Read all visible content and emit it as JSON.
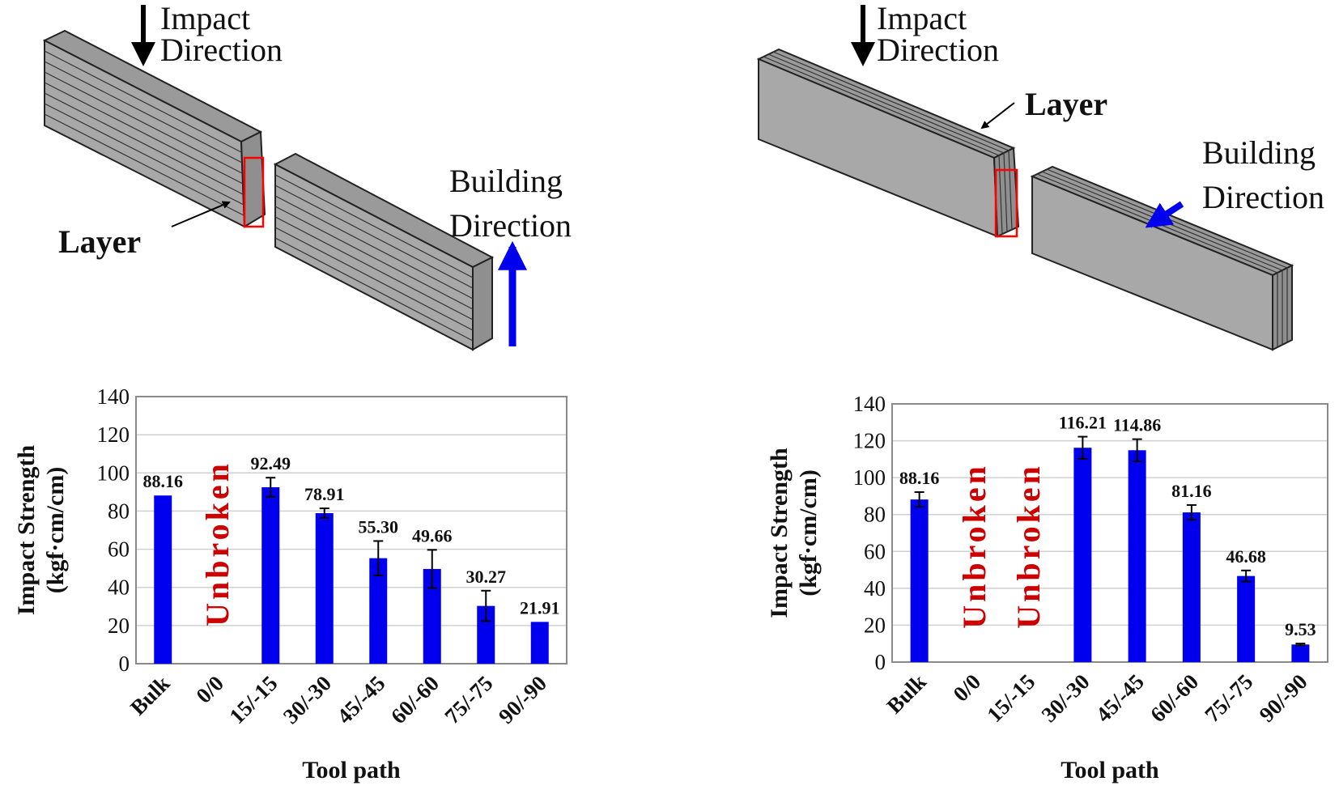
{
  "diagram_left": {
    "impact_label_1": "Impact",
    "impact_label_2": "Direction",
    "layer_label": "Layer",
    "building_label_1": "Building",
    "building_label_2": "Direction"
  },
  "diagram_right": {
    "impact_label_1": "Impact",
    "impact_label_2": "Direction",
    "layer_label": "Layer",
    "building_label_1": "Building",
    "building_label_2": "Direction"
  },
  "colors": {
    "bar": "#0000ee",
    "unbroken": "#cc0000",
    "specimen": "#a8a8a8",
    "building_arrow": "#0000ee",
    "highlight": "#ff0000"
  },
  "chart_data": [
    {
      "type": "bar",
      "title": "",
      "xlabel": "Tool path",
      "ylabel": "Impact Strength (kgf·cm/cm)",
      "ylabel_line1": "Impact Strength",
      "ylabel_line2": "(kgf·cm/cm)",
      "ylim": [
        0,
        140
      ],
      "yticks": [
        "0",
        "20",
        "40",
        "60",
        "80",
        "100",
        "120",
        "140"
      ],
      "grid": true,
      "categories": [
        "Bulk",
        "0/0",
        "15/-15",
        "30/-30",
        "45/-45",
        "60/-60",
        "75/-75",
        "90/-90"
      ],
      "values": [
        88.16,
        null,
        92.49,
        78.91,
        55.3,
        49.66,
        30.27,
        21.91
      ],
      "errors": [
        0,
        0,
        5,
        2.5,
        9,
        10,
        8,
        0
      ],
      "data_labels": [
        "88.16",
        "",
        "92.49",
        "78.91",
        "55.30",
        "49.66",
        "30.27",
        "21.91"
      ],
      "unbroken_text": "Unbroken",
      "unbroken_categories": [
        "0/0"
      ]
    },
    {
      "type": "bar",
      "title": "",
      "xlabel": "Tool path",
      "ylabel": "Impact Strength (kgf·cm/cm)",
      "ylabel_line1": "Impact Strength",
      "ylabel_line2": "(kgf·cm/cm)",
      "ylim": [
        0,
        140
      ],
      "yticks": [
        "0",
        "20",
        "40",
        "60",
        "80",
        "100",
        "120",
        "140"
      ],
      "grid": true,
      "categories": [
        "Bulk",
        "0/0",
        "15/-15",
        "30/-30",
        "45/-45",
        "60/-60",
        "75/-75",
        "90/-90"
      ],
      "values": [
        88.16,
        null,
        null,
        116.21,
        114.86,
        81.16,
        46.68,
        9.53
      ],
      "errors": [
        4,
        0,
        0,
        6,
        6,
        4,
        3,
        0.5
      ],
      "data_labels": [
        "88.16",
        "",
        "",
        "116.21",
        "114.86",
        "81.16",
        "46.68",
        "9.53"
      ],
      "unbroken_text": "Unbroken",
      "unbroken_categories": [
        "0/0",
        "15/-15"
      ]
    }
  ]
}
